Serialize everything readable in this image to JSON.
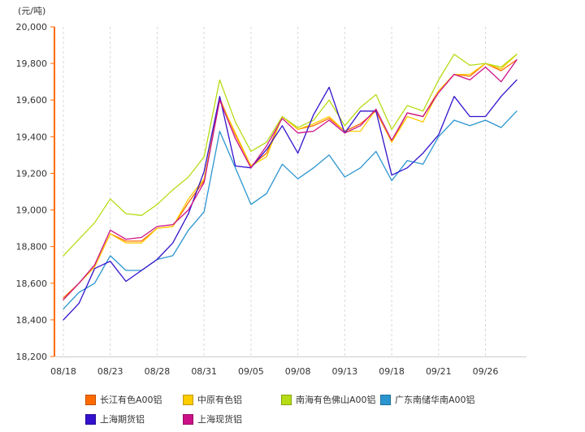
{
  "chart_data": {
    "type": "line",
    "title": "",
    "xlabel": "",
    "ylabel": "(元/吨)",
    "ylim": [
      18200,
      20000
    ],
    "yticks": [
      18200,
      18400,
      18600,
      18800,
      19000,
      19200,
      19400,
      19600,
      19800,
      20000
    ],
    "x": [
      "08/18",
      "08/21",
      "08/22",
      "08/23",
      "08/24",
      "08/25",
      "08/28",
      "08/29",
      "08/30",
      "08/31",
      "09/01",
      "09/04",
      "09/05",
      "09/06",
      "09/07",
      "09/08",
      "09/11",
      "09/12",
      "09/13",
      "09/14",
      "09/15",
      "09/18",
      "09/19",
      "09/20",
      "09/21",
      "09/22",
      "09/25",
      "09/26",
      "09/27",
      "09/28"
    ],
    "xticks": [
      "08/18",
      "08/23",
      "08/28",
      "08/31",
      "09/05",
      "09/08",
      "09/13",
      "09/18",
      "09/21",
      "09/26"
    ],
    "grid": {
      "vertical": true,
      "horizontal": false
    },
    "legend_position": "bottom",
    "series": [
      {
        "name": "长江有色A00铝",
        "color": "#ff6a00",
        "values": [
          18520,
          18600,
          18690,
          18870,
          18830,
          18830,
          18900,
          18910,
          19040,
          19160,
          19610,
          19410,
          19240,
          19310,
          19510,
          19440,
          19460,
          19500,
          19430,
          19470,
          19540,
          19370,
          19530,
          19510,
          19650,
          19740,
          19730,
          19800,
          19760,
          19820
        ]
      },
      {
        "name": "中原有色铝",
        "color": "#ffcc00",
        "values": [
          18510,
          18600,
          18690,
          18870,
          18820,
          18820,
          18900,
          18910,
          19060,
          19170,
          19600,
          19420,
          19240,
          19290,
          19510,
          19440,
          19470,
          19510,
          19430,
          19430,
          19550,
          19370,
          19510,
          19480,
          19650,
          19740,
          19740,
          19800,
          19770,
          19850
        ]
      },
      {
        "name": "南海有色佛山A00铝",
        "color": "#b5dc14",
        "values": [
          18750,
          18840,
          18930,
          19060,
          18980,
          18970,
          19030,
          19110,
          19180,
          19290,
          19710,
          19480,
          19320,
          19370,
          19510,
          19450,
          19490,
          19600,
          19460,
          19560,
          19630,
          19440,
          19570,
          19540,
          19710,
          19850,
          19790,
          19800,
          19780,
          19850
        ]
      },
      {
        "name": "广东南储华南A00铝",
        "color": "#2b95d0",
        "values": [
          18460,
          18550,
          18600,
          18750,
          18670,
          18670,
          18730,
          18750,
          18890,
          18990,
          19430,
          19230,
          19030,
          19090,
          19250,
          19170,
          19230,
          19300,
          19180,
          19230,
          19320,
          19160,
          19270,
          19250,
          19400,
          19490,
          19460,
          19490,
          19450,
          19540
        ]
      },
      {
        "name": "上海期货铝",
        "color": "#3311cc",
        "values": [
          18400,
          18490,
          18680,
          18720,
          18610,
          18670,
          18730,
          18820,
          18980,
          19210,
          19620,
          19240,
          19230,
          19330,
          19460,
          19310,
          19520,
          19670,
          19420,
          19540,
          19540,
          19190,
          19230,
          19310,
          19410,
          19620,
          19510,
          19510,
          19620,
          19710
        ]
      },
      {
        "name": "上海现货铝",
        "color": "#cc1188",
        "values": [
          18510,
          18600,
          18700,
          18890,
          18840,
          18850,
          18910,
          18920,
          19000,
          19150,
          19600,
          19390,
          19230,
          19350,
          19500,
          19420,
          19430,
          19490,
          19420,
          19460,
          19550,
          19380,
          19530,
          19510,
          19640,
          19740,
          19710,
          19780,
          19700,
          19820
        ]
      }
    ]
  }
}
